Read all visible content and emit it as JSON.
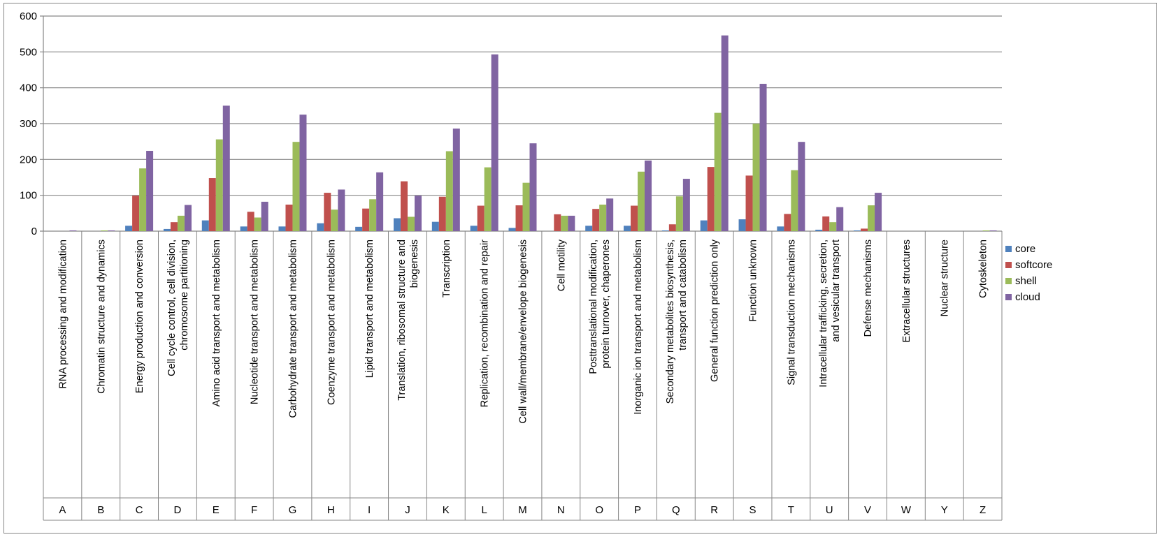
{
  "chart_data": {
    "type": "bar",
    "title": "",
    "xlabel": "",
    "ylabel": "",
    "ylim": [
      0,
      600
    ],
    "yticks": [
      0,
      100,
      200,
      300,
      400,
      500,
      600
    ],
    "grid": true,
    "legend_position": "right",
    "codes": [
      "A",
      "B",
      "C",
      "D",
      "E",
      "F",
      "G",
      "H",
      "I",
      "J",
      "K",
      "L",
      "M",
      "N",
      "O",
      "P",
      "Q",
      "R",
      "S",
      "T",
      "U",
      "V",
      "W",
      "Y",
      "Z"
    ],
    "categories": [
      "RNA processing and modification",
      "Chromatin structure and dynamics",
      "Energy production and conversion",
      "Cell cycle control, cell division, chromosome partitioning",
      "Amino acid transport and metabolism",
      "Nucleotide transport and metabolism",
      "Carbohydrate transport and metabolism",
      "Coenzyme transport and metabolism",
      "Lipid transport and metabolism",
      "Translation, ribosomal structure and biogenesis",
      "Transcription",
      "Replication, recombination and repair",
      "Cell wall/membrane/envelope biogenesis",
      "Cell motility",
      "Posttranslational modification, protein turnover, chaperones",
      "Inorganic ion transport and metabolism",
      "Secondary metabolites biosynthesis, transport and catabolism",
      "General function prediction only",
      "Function unknown",
      "Signal transduction mechanisms",
      "Intracellular trafficking, secretion, and vesicular transport",
      "Defense mechanisms",
      "Extracellular structures",
      "Nuclear structure",
      "Cytoskeleton"
    ],
    "series": [
      {
        "name": "core",
        "color": "#4F81BD",
        "values": [
          0,
          0,
          15,
          6,
          30,
          13,
          13,
          22,
          12,
          36,
          26,
          15,
          9,
          0,
          15,
          15,
          2,
          30,
          33,
          13,
          4,
          2,
          0,
          0,
          0
        ]
      },
      {
        "name": "softcore",
        "color": "#C0504D",
        "values": [
          0,
          0,
          99,
          25,
          148,
          54,
          74,
          107,
          63,
          139,
          96,
          71,
          72,
          47,
          62,
          71,
          19,
          179,
          155,
          48,
          41,
          7,
          0,
          0,
          0
        ]
      },
      {
        "name": "shell",
        "color": "#9BBB59",
        "values": [
          0,
          2,
          175,
          43,
          256,
          38,
          249,
          60,
          89,
          40,
          223,
          178,
          135,
          43,
          74,
          166,
          97,
          330,
          300,
          170,
          25,
          72,
          0,
          0,
          2
        ]
      },
      {
        "name": "cloud",
        "color": "#8064A2",
        "values": [
          2,
          2,
          224,
          73,
          350,
          82,
          325,
          116,
          164,
          99,
          286,
          493,
          245,
          43,
          91,
          197,
          146,
          546,
          411,
          249,
          67,
          107,
          0,
          0,
          2
        ]
      }
    ]
  }
}
